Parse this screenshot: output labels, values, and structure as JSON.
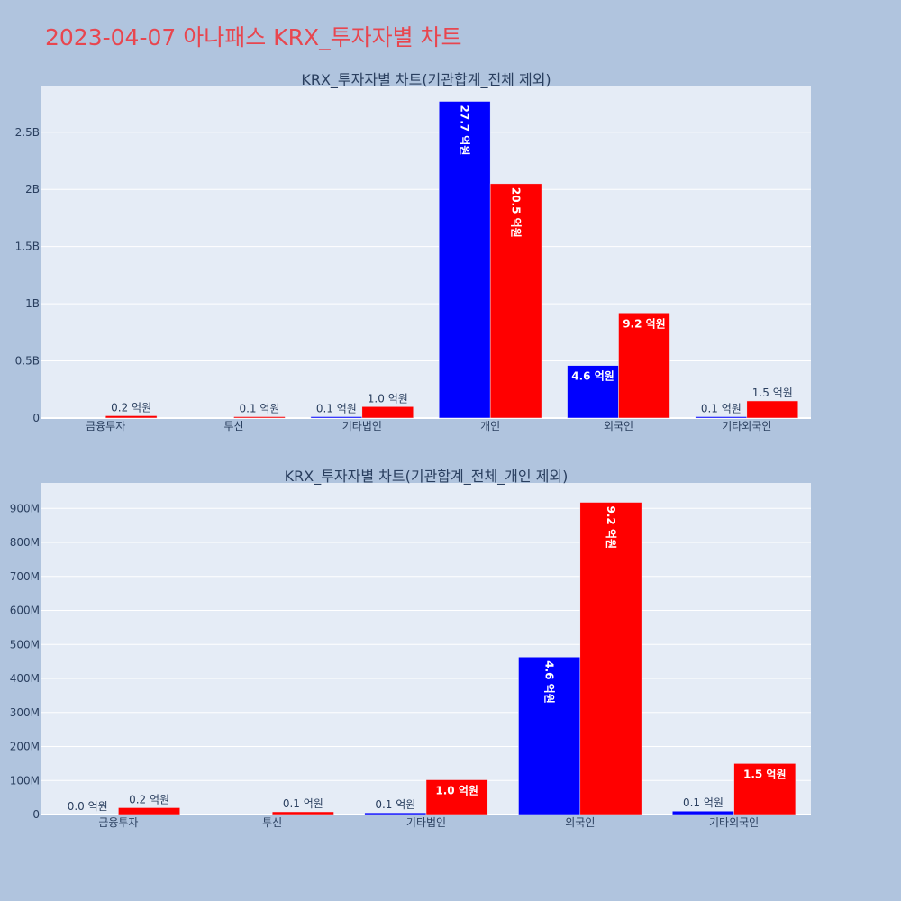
{
  "page": {
    "title": "2023-04-07 아나패스 KRX_투자자별 차트",
    "background": "#b0c4de",
    "title_color": "#e8464f"
  },
  "chart_data": [
    {
      "type": "bar",
      "title": "KRX_투자자별 차트(기관합계_전체 제외)",
      "categories": [
        "금융투자",
        "투신",
        "기타법인",
        "개인",
        "외국인",
        "기타외국인"
      ],
      "series": [
        {
          "color": "#0000ff",
          "values": [
            0,
            0,
            5000000,
            2770000000,
            460000000,
            10000000
          ],
          "labels": [
            "",
            "",
            "0.1 억원",
            "27.7 억원",
            "4.6 억원",
            "0.1 억원"
          ]
        },
        {
          "color": "#ff0000",
          "values": [
            20000000,
            5000000,
            100000000,
            2050000000,
            920000000,
            150000000
          ],
          "labels": [
            "0.2 억원",
            "0.1 억원",
            "1.0 억원",
            "20.5 억원",
            "9.2 억원",
            "1.5 억원"
          ]
        }
      ],
      "yticks": [
        0,
        500000000,
        1000000000,
        1500000000,
        2000000000,
        2500000000
      ],
      "ytick_labels": [
        "0",
        "0.5B",
        "1B",
        "1.5B",
        "2B",
        "2.5B"
      ],
      "ylim": [
        0,
        2900000000
      ],
      "grid": true,
      "plot_background": "#e5ecf6"
    },
    {
      "type": "bar",
      "title": "KRX_투자자별 차트(기관합계_전체_개인 제외)",
      "categories": [
        "금융투자",
        "투신",
        "기타법인",
        "외국인",
        "기타외국인"
      ],
      "series": [
        {
          "color": "#0000ff",
          "values": [
            0,
            0,
            5000000,
            463000000,
            10000000
          ],
          "labels": [
            "0.0 억원",
            "",
            "0.1 억원",
            "4.6 억원",
            "0.1 억원"
          ]
        },
        {
          "color": "#ff0000",
          "values": [
            20000000,
            8000000,
            102000000,
            918000000,
            150000000
          ],
          "labels": [
            "0.2 억원",
            "0.1 억원",
            "1.0 억원",
            "9.2 억원",
            "1.5 억원"
          ]
        }
      ],
      "yticks": [
        0,
        100000000,
        200000000,
        300000000,
        400000000,
        500000000,
        600000000,
        700000000,
        800000000,
        900000000
      ],
      "ytick_labels": [
        "0",
        "100M",
        "200M",
        "300M",
        "400M",
        "500M",
        "600M",
        "700M",
        "800M",
        "900M"
      ],
      "ylim": [
        0,
        975000000
      ],
      "grid": true,
      "plot_background": "#e5ecf6"
    }
  ]
}
